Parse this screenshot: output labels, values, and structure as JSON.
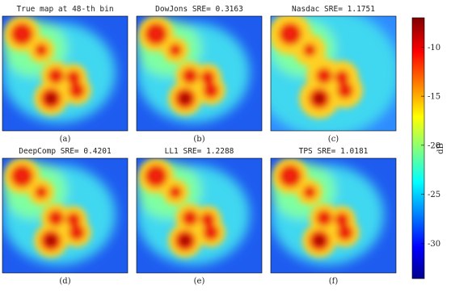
{
  "panels": [
    {
      "title": "True map at 48-th bin",
      "caption": "(a)"
    },
    {
      "title": "DowJons SRE= 0.3163",
      "caption": "(b)"
    },
    {
      "title": "Nasdac SRE= 1.1751",
      "caption": "(c)"
    },
    {
      "title": "DeepComp SRE= 0.4201",
      "caption": "(d)"
    },
    {
      "title": "LL1 SRE= 1.2288",
      "caption": "(e)"
    },
    {
      "title": "TPS SRE= 1.0181",
      "caption": "(f)"
    }
  ],
  "colorbar": {
    "label": "dB",
    "lim": [
      -33.6,
      -7
    ],
    "ticks": [
      -10,
      -15,
      -20,
      -25,
      -30
    ]
  }
}
